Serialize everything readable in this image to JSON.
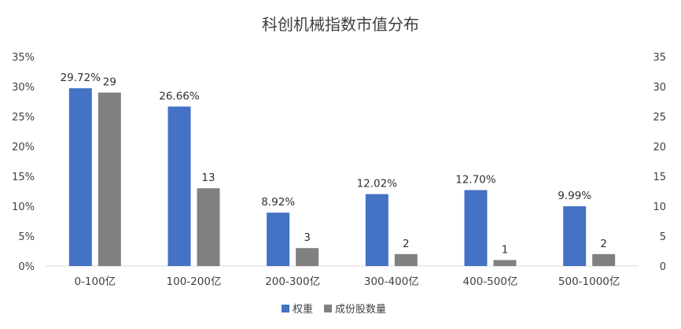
{
  "chart_data": {
    "type": "bar",
    "title": "科创机械指数市值分布",
    "categories": [
      "0-100亿",
      "100-200亿",
      "200-300亿",
      "300-400亿",
      "400-500亿",
      "500-1000亿"
    ],
    "series": [
      {
        "name": "权重",
        "axis": "left",
        "color": "#4472C4",
        "values": [
          29.72,
          26.66,
          8.92,
          12.02,
          12.7,
          9.99
        ],
        "labels": [
          "29.72%",
          "26.66%",
          "8.92%",
          "12.02%",
          "12.70%",
          "9.99%"
        ]
      },
      {
        "name": "成份股数量",
        "axis": "right",
        "color": "#808080",
        "values": [
          29,
          13,
          3,
          2,
          1,
          2
        ],
        "labels": [
          "29",
          "13",
          "3",
          "2",
          "1",
          "2"
        ]
      }
    ],
    "y_left": {
      "ylim": [
        0,
        35
      ],
      "ticks": [
        0,
        5,
        10,
        15,
        20,
        25,
        30,
        35
      ],
      "tick_labels": [
        "0%",
        "5%",
        "10%",
        "15%",
        "20%",
        "25%",
        "30%",
        "35%"
      ]
    },
    "y_right": {
      "ylim": [
        0,
        35
      ],
      "ticks": [
        0,
        5,
        10,
        15,
        20,
        25,
        30,
        35
      ],
      "tick_labels": [
        "0",
        "5",
        "10",
        "15",
        "20",
        "25",
        "30",
        "35"
      ]
    },
    "grid": false,
    "legend_position": "bottom"
  }
}
